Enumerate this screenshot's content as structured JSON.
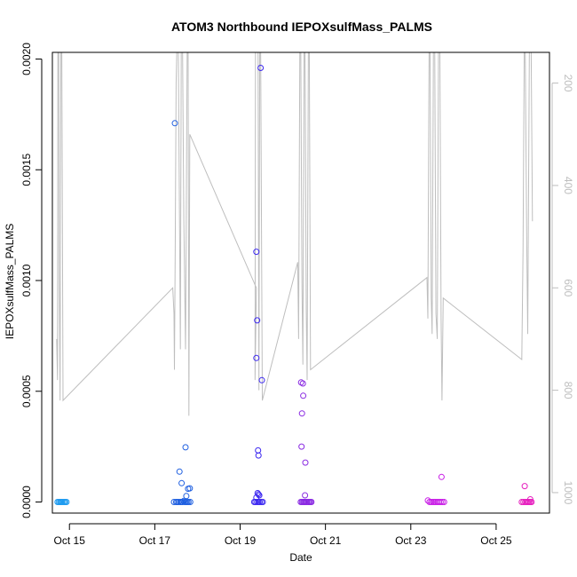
{
  "chart_data": {
    "type": "scatter",
    "title": "ATOM3 Northbound IEPOXsulfMass_PALMS",
    "xlabel": "Date",
    "ylabel": "IEPOXsulfMass_PALMS",
    "y2label": "",
    "x_unit": "days (Oct 2017 day-of-month, fractional)",
    "xlim": [
      14.6,
      26.25
    ],
    "ylim": [
      -5e-05,
      0.00203
    ],
    "y2lim": [
      1040,
      140
    ],
    "y2_reversed": true,
    "x_ticks": [
      {
        "value": 15,
        "label": "Oct 15"
      },
      {
        "value": 17,
        "label": "Oct 17"
      },
      {
        "value": 19,
        "label": "Oct 19"
      },
      {
        "value": 21,
        "label": "Oct 21"
      },
      {
        "value": 23,
        "label": "Oct 23"
      },
      {
        "value": 25,
        "label": "Oct 25"
      }
    ],
    "y_ticks": [
      {
        "value": 0.0,
        "label": "0.0000"
      },
      {
        "value": 0.0005,
        "label": "0.0005"
      },
      {
        "value": 0.001,
        "label": "0.0010"
      },
      {
        "value": 0.0015,
        "label": "0.0015"
      },
      {
        "value": 0.002,
        "label": "0.0020"
      }
    ],
    "y2_ticks": [
      {
        "value": 200,
        "label": "200"
      },
      {
        "value": 400,
        "label": "400"
      },
      {
        "value": 600,
        "label": "600"
      },
      {
        "value": 800,
        "label": "800"
      },
      {
        "value": 1000,
        "label": "1000"
      }
    ],
    "grid": false,
    "colors": {
      "altitude_line": "#bebebe",
      "axis": "#000000",
      "right_axis": "#bebebe"
    },
    "series": [
      {
        "color": "#1e9bf0",
        "points": [
          [
            14.72,
            0
          ],
          [
            14.75,
            0
          ],
          [
            14.78,
            0
          ],
          [
            14.8,
            0
          ],
          [
            14.82,
            0
          ],
          [
            14.85,
            0
          ],
          [
            14.88,
            0
          ],
          [
            14.9,
            0
          ],
          [
            14.93,
            0
          ]
        ]
      },
      {
        "color": "#1f5fe0",
        "points": [
          [
            17.47,
            0.00171
          ],
          [
            17.72,
            0.000247
          ],
          [
            17.58,
            0.000137
          ],
          [
            17.63,
            8.5e-05
          ],
          [
            17.78,
            6e-05
          ],
          [
            17.82,
            6.2e-05
          ],
          [
            17.74,
            2.7e-05
          ],
          [
            17.68,
            5e-06
          ],
          [
            17.45,
            0
          ],
          [
            17.5,
            0
          ],
          [
            17.53,
            0
          ],
          [
            17.56,
            0
          ],
          [
            17.6,
            0
          ],
          [
            17.62,
            0
          ],
          [
            17.65,
            0
          ],
          [
            17.7,
            0
          ],
          [
            17.73,
            0
          ],
          [
            17.76,
            0
          ],
          [
            17.79,
            0
          ],
          [
            17.83,
            0
          ]
        ]
      },
      {
        "color": "#3c28f0",
        "points": [
          [
            19.48,
            0.00196
          ],
          [
            19.38,
            0.00113
          ],
          [
            19.4,
            0.00082
          ],
          [
            19.38,
            0.00065
          ],
          [
            19.51,
            0.00055
          ],
          [
            19.42,
            0.000233
          ],
          [
            19.43,
            0.00021
          ],
          [
            19.41,
            4e-05
          ],
          [
            19.43,
            3.5e-05
          ],
          [
            19.45,
            3e-05
          ],
          [
            19.38,
            2e-05
          ],
          [
            19.33,
            0
          ],
          [
            19.36,
            0
          ],
          [
            19.4,
            0
          ],
          [
            19.43,
            0
          ],
          [
            19.46,
            0
          ],
          [
            19.5,
            0
          ],
          [
            19.53,
            0
          ]
        ]
      },
      {
        "color": "#8a2be2",
        "points": [
          [
            20.43,
            0.00054
          ],
          [
            20.47,
            0.000535
          ],
          [
            20.48,
            0.00048
          ],
          [
            20.45,
            0.0004
          ],
          [
            20.44,
            0.00025
          ],
          [
            20.53,
            0.000178
          ],
          [
            20.52,
            3e-05
          ],
          [
            20.42,
            0
          ],
          [
            20.45,
            0
          ],
          [
            20.48,
            0
          ],
          [
            20.5,
            0
          ],
          [
            20.52,
            0
          ],
          [
            20.55,
            0
          ],
          [
            20.57,
            0
          ],
          [
            20.6,
            0
          ],
          [
            20.62,
            0
          ],
          [
            20.65,
            0
          ],
          [
            20.67,
            0
          ]
        ]
      },
      {
        "color": "#c81ee6",
        "points": [
          [
            23.72,
            0.000113
          ],
          [
            23.4,
            7e-06
          ],
          [
            23.44,
            0
          ],
          [
            23.48,
            0
          ],
          [
            23.52,
            0
          ],
          [
            23.55,
            0
          ],
          [
            23.58,
            0
          ],
          [
            23.62,
            0
          ],
          [
            23.66,
            0
          ],
          [
            23.7,
            0
          ],
          [
            23.74,
            0
          ],
          [
            23.78,
            0
          ]
        ]
      },
      {
        "color": "#e61ebe",
        "points": [
          [
            25.67,
            7.2e-05
          ],
          [
            25.8,
            1.2e-05
          ],
          [
            25.6,
            0
          ],
          [
            25.64,
            0
          ],
          [
            25.68,
            0
          ],
          [
            25.71,
            0
          ],
          [
            25.74,
            0
          ],
          [
            25.77,
            0
          ],
          [
            25.8,
            0
          ],
          [
            25.83,
            0
          ]
        ]
      }
    ],
    "altitude_line": {
      "axis": "y2",
      "points": [
        [
          14.7,
          700
        ],
        [
          14.72,
          780
        ],
        [
          14.73,
          120
        ],
        [
          14.75,
          120
        ],
        [
          14.76,
          580
        ],
        [
          14.78,
          820
        ],
        [
          14.8,
          120
        ],
        [
          14.82,
          120
        ],
        [
          14.85,
          820
        ],
        [
          17.42,
          600
        ],
        [
          17.45,
          650
        ],
        [
          17.46,
          760
        ],
        [
          17.48,
          520
        ],
        [
          17.5,
          200
        ],
        [
          17.52,
          120
        ],
        [
          17.55,
          120
        ],
        [
          17.58,
          460
        ],
        [
          17.6,
          720
        ],
        [
          17.62,
          120
        ],
        [
          17.65,
          120
        ],
        [
          17.68,
          470
        ],
        [
          17.72,
          720
        ],
        [
          17.76,
          120
        ],
        [
          17.78,
          120
        ],
        [
          17.8,
          850
        ],
        [
          17.82,
          300
        ],
        [
          19.38,
          600
        ],
        [
          19.35,
          780
        ],
        [
          19.36,
          120
        ],
        [
          19.4,
          120
        ],
        [
          19.42,
          120
        ],
        [
          19.44,
          800
        ],
        [
          19.46,
          120
        ],
        [
          19.48,
          120
        ],
        [
          19.52,
          820
        ],
        [
          20.35,
          550
        ],
        [
          20.37,
          700
        ],
        [
          20.4,
          120
        ],
        [
          20.42,
          120
        ],
        [
          20.45,
          600
        ],
        [
          20.47,
          750
        ],
        [
          20.5,
          120
        ],
        [
          20.52,
          120
        ],
        [
          20.55,
          640
        ],
        [
          20.57,
          780
        ],
        [
          20.6,
          120
        ],
        [
          20.62,
          120
        ],
        [
          20.65,
          760
        ],
        [
          23.38,
          580
        ],
        [
          23.4,
          660
        ],
        [
          23.43,
          120
        ],
        [
          23.45,
          120
        ],
        [
          23.48,
          620
        ],
        [
          23.5,
          690
        ],
        [
          23.53,
          120
        ],
        [
          23.56,
          120
        ],
        [
          23.59,
          650
        ],
        [
          23.62,
          700
        ],
        [
          23.65,
          120
        ],
        [
          23.68,
          120
        ],
        [
          23.71,
          660
        ],
        [
          23.73,
          820
        ],
        [
          23.76,
          620
        ],
        [
          25.6,
          740
        ],
        [
          25.63,
          530
        ],
        [
          25.66,
          120
        ],
        [
          25.68,
          120
        ],
        [
          25.72,
          530
        ],
        [
          25.74,
          690
        ],
        [
          25.78,
          120
        ],
        [
          25.82,
          120
        ],
        [
          25.85,
          470
        ]
      ]
    }
  }
}
